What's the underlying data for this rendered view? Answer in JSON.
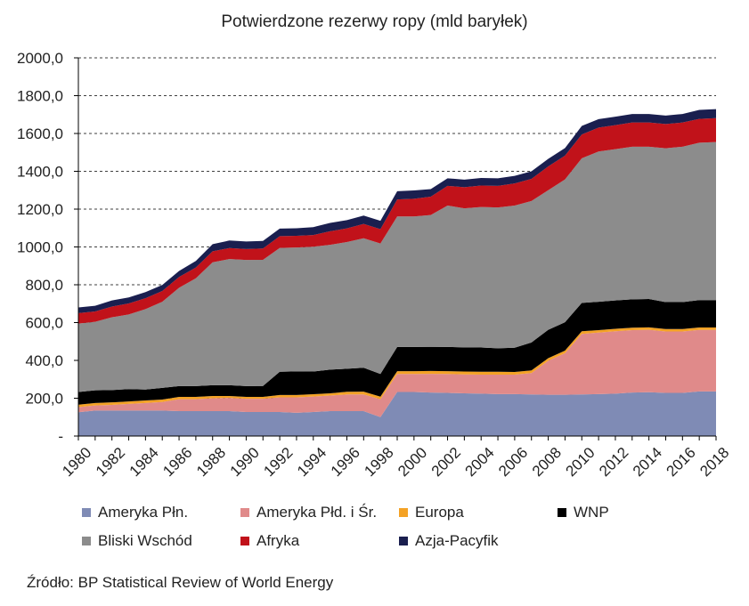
{
  "chart_data": {
    "type": "area",
    "stacked": true,
    "title": "Potwierdzone rezerwy ropy (mld baryłek)",
    "ylim": [
      0,
      2000
    ],
    "y_ticks": [
      "-",
      "200,0",
      "400,0",
      "600,0",
      "800,0",
      "1000,0",
      "1200,0",
      "1400,0",
      "1600,0",
      "1800,0",
      "2000,0"
    ],
    "x_ticks": [
      "1980",
      "1982",
      "1984",
      "1986",
      "1988",
      "1990",
      "1992",
      "1994",
      "1996",
      "1998",
      "2000",
      "2002",
      "2004",
      "2006",
      "2008",
      "2010",
      "2012",
      "2014",
      "2016",
      "2018"
    ],
    "grid": "horizontal dashed",
    "legend_position": "bottom",
    "x": [
      1980,
      1981,
      1982,
      1983,
      1984,
      1985,
      1986,
      1987,
      1988,
      1989,
      1990,
      1991,
      1992,
      1993,
      1994,
      1995,
      1996,
      1997,
      1998,
      1999,
      2000,
      2001,
      2002,
      2003,
      2004,
      2005,
      2006,
      2007,
      2008,
      2009,
      2010,
      2011,
      2012,
      2013,
      2014,
      2015,
      2016,
      2017,
      2018
    ],
    "series": [
      {
        "name": "Ameryka Płn.",
        "color": "#7f8bb5",
        "values": [
          126,
          135,
          135,
          135,
          135,
          135,
          132,
          132,
          132,
          132,
          127,
          127,
          127,
          123,
          127,
          132,
          132,
          132,
          100,
          233,
          233,
          230,
          228,
          226,
          224,
          222,
          222,
          220,
          218,
          218,
          220,
          222,
          224,
          230,
          232,
          228,
          228,
          236,
          236
        ]
      },
      {
        "name": "Ameryka Płd. i Śr.",
        "color": "#e08a8a",
        "values": [
          27,
          27,
          30,
          35,
          40,
          45,
          63,
          63,
          68,
          70,
          70,
          70,
          78,
          82,
          82,
          82,
          88,
          88,
          95,
          95,
          95,
          99,
          100,
          100,
          101,
          103,
          103,
          113,
          180,
          220,
          320,
          325,
          330,
          330,
          330,
          325,
          325,
          325,
          325
        ]
      },
      {
        "name": "Europa",
        "color": "#f4a225",
        "values": [
          13,
          13,
          13,
          13,
          13,
          13,
          12,
          12,
          12,
          10,
          10,
          10,
          12,
          12,
          12,
          12,
          14,
          15,
          13,
          15,
          15,
          15,
          15,
          15,
          15,
          15,
          14,
          14,
          14,
          14,
          14,
          13,
          13,
          13,
          13,
          13,
          13,
          13,
          13
        ]
      },
      {
        "name": "WNP",
        "color": "#000000",
        "values": [
          67,
          67,
          65,
          65,
          58,
          62,
          57,
          57,
          57,
          57,
          57,
          58,
          123,
          125,
          120,
          125,
          122,
          126,
          120,
          128,
          128,
          128,
          128,
          128,
          128,
          124,
          128,
          148,
          150,
          150,
          150,
          150,
          150,
          150,
          150,
          142,
          142,
          145,
          145
        ]
      },
      {
        "name": "Bliski Wschód",
        "color": "#8c8c8c",
        "values": [
          362,
          362,
          385,
          395,
          425,
          455,
          520,
          570,
          650,
          667,
          667,
          667,
          655,
          655,
          660,
          660,
          670,
          685,
          690,
          690,
          690,
          697,
          748,
          735,
          743,
          745,
          752,
          748,
          738,
          755,
          765,
          795,
          800,
          807,
          805,
          814,
          822,
          832,
          836
        ]
      },
      {
        "name": "Afryka",
        "color": "#c1121a",
        "values": [
          55,
          55,
          57,
          58,
          58,
          57,
          57,
          57,
          58,
          58,
          58,
          60,
          62,
          62,
          62,
          72,
          72,
          76,
          76,
          90,
          94,
          97,
          104,
          112,
          114,
          114,
          117,
          117,
          126,
          126,
          126,
          126,
          127,
          128,
          128,
          128,
          128,
          126,
          126
        ]
      },
      {
        "name": "Azja-Pacyfik",
        "color": "#1a1f4f",
        "values": [
          30,
          30,
          32,
          32,
          32,
          32,
          32,
          35,
          38,
          40,
          40,
          40,
          40,
          40,
          42,
          44,
          44,
          44,
          44,
          44,
          44,
          40,
          40,
          40,
          40,
          40,
          40,
          40,
          40,
          40,
          45,
          45,
          45,
          45,
          45,
          45,
          45,
          48,
          48
        ]
      }
    ]
  },
  "source_text": "Źródło: BP Statistical Review of World Energy"
}
